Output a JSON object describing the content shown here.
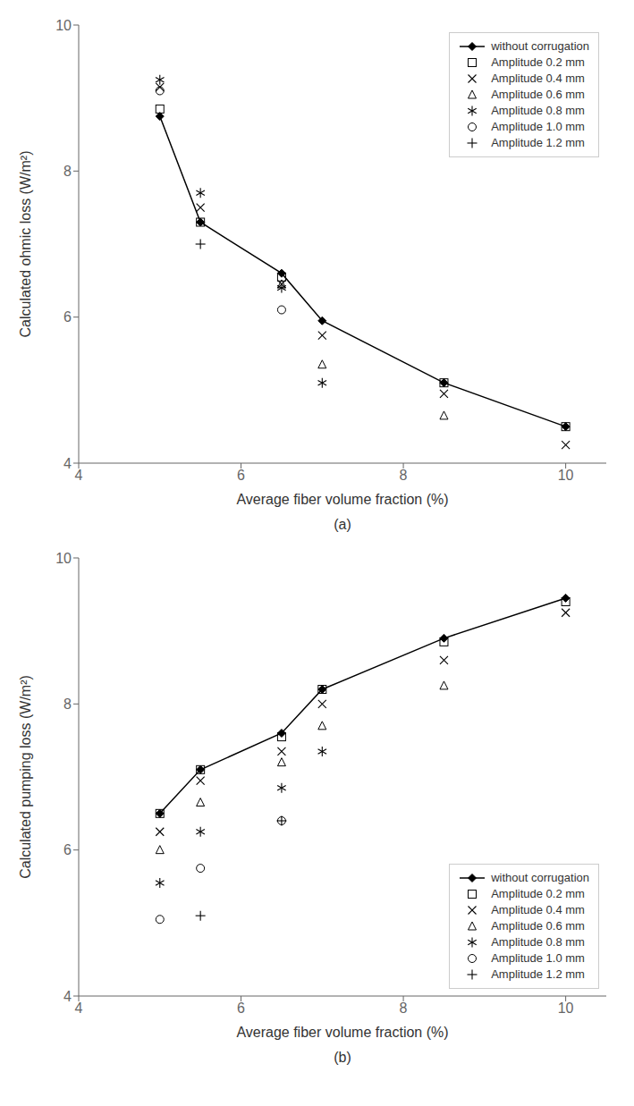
{
  "chart_data": [
    {
      "type": "scatter",
      "title": "(a)",
      "xlabel": "Average fiber volume fraction (%)",
      "ylabel": "Calculated ohmic loss (W/m²)",
      "xlim": [
        4,
        10.5
      ],
      "ylim": [
        4,
        10
      ],
      "xticks": [
        4,
        6,
        8,
        10
      ],
      "yticks": [
        4,
        6,
        8,
        10
      ],
      "grid": false,
      "legend": "upper right",
      "series": [
        {
          "name": "without corrugation",
          "type": "line",
          "marker": "diamond",
          "color": "black",
          "x": [
            5.0,
            5.5,
            6.5,
            7.0,
            8.5,
            10.0
          ],
          "values": [
            8.75,
            7.3,
            6.6,
            5.95,
            5.1,
            4.5
          ]
        },
        {
          "name": "Amplitude 0.2 mm",
          "type": "scatter",
          "marker": "square",
          "color": "black",
          "x": [
            5.0,
            5.5,
            6.5,
            8.5,
            10.0
          ],
          "values": [
            8.85,
            7.3,
            6.55,
            5.1,
            4.5
          ]
        },
        {
          "name": "Amplitude 0.4 mm",
          "type": "scatter",
          "marker": "x",
          "color": "black",
          "x": [
            5.0,
            5.5,
            6.5,
            7.0,
            8.5,
            10.0
          ],
          "values": [
            9.15,
            7.5,
            6.45,
            5.75,
            4.95,
            4.25
          ]
        },
        {
          "name": "Amplitude 0.6 mm",
          "type": "scatter",
          "marker": "triangle",
          "color": "black",
          "x": [
            6.5,
            7.0,
            8.5
          ],
          "values": [
            6.45,
            5.35,
            4.65
          ]
        },
        {
          "name": "Amplitude 0.8 mm",
          "type": "scatter",
          "marker": "asterisk",
          "color": "black",
          "x": [
            5.0,
            5.5,
            6.5,
            7.0
          ],
          "values": [
            9.25,
            7.7,
            6.4,
            5.1
          ]
        },
        {
          "name": "Amplitude 1.0 mm",
          "type": "scatter",
          "marker": "circle",
          "color": "black",
          "x": [
            5.0,
            6.5
          ],
          "values": [
            9.1,
            6.1
          ]
        },
        {
          "name": "Amplitude 1.2 mm",
          "type": "scatter",
          "marker": "plus",
          "color": "black",
          "x": [
            5.5
          ],
          "values": [
            7.0
          ]
        }
      ]
    },
    {
      "type": "scatter",
      "title": "(b)",
      "xlabel": "Average fiber volume fraction (%)",
      "ylabel": "Calculated pumping loss (W/m²)",
      "xlim": [
        4,
        10.5
      ],
      "ylim": [
        4,
        10
      ],
      "xticks": [
        4,
        6,
        8,
        10
      ],
      "yticks": [
        4,
        6,
        8,
        10
      ],
      "grid": false,
      "legend": "lower right",
      "series": [
        {
          "name": "without corrugation",
          "type": "line",
          "marker": "diamond",
          "color": "black",
          "x": [
            5.0,
            5.5,
            6.5,
            7.0,
            8.5,
            10.0
          ],
          "values": [
            6.5,
            7.1,
            7.6,
            8.2,
            8.9,
            9.45
          ]
        },
        {
          "name": "Amplitude 0.2 mm",
          "type": "scatter",
          "marker": "square",
          "color": "black",
          "x": [
            5.0,
            5.5,
            6.5,
            7.0,
            8.5,
            10.0
          ],
          "values": [
            6.5,
            7.1,
            7.55,
            8.2,
            8.85,
            9.4
          ]
        },
        {
          "name": "Amplitude 0.4 mm",
          "type": "scatter",
          "marker": "x",
          "color": "black",
          "x": [
            5.0,
            5.5,
            6.5,
            7.0,
            8.5,
            10.0
          ],
          "values": [
            6.25,
            6.95,
            7.35,
            8.0,
            8.6,
            9.25
          ]
        },
        {
          "name": "Amplitude 0.6 mm",
          "type": "scatter",
          "marker": "triangle",
          "color": "black",
          "x": [
            5.0,
            5.5,
            6.5,
            7.0,
            8.5
          ],
          "values": [
            6.0,
            6.65,
            7.2,
            7.7,
            8.25
          ]
        },
        {
          "name": "Amplitude 0.8 mm",
          "type": "scatter",
          "marker": "asterisk",
          "color": "black",
          "x": [
            5.0,
            5.5,
            6.5,
            7.0
          ],
          "values": [
            5.55,
            6.25,
            6.85,
            7.35
          ]
        },
        {
          "name": "Amplitude 1.0 mm",
          "type": "scatter",
          "marker": "circle",
          "color": "black",
          "x": [
            5.0,
            5.5,
            6.5
          ],
          "values": [
            5.05,
            5.75,
            6.4
          ]
        },
        {
          "name": "Amplitude 1.2 mm",
          "type": "scatter",
          "marker": "plus",
          "color": "black",
          "x": [
            5.5,
            6.5
          ],
          "values": [
            5.1,
            6.4
          ]
        }
      ]
    }
  ]
}
